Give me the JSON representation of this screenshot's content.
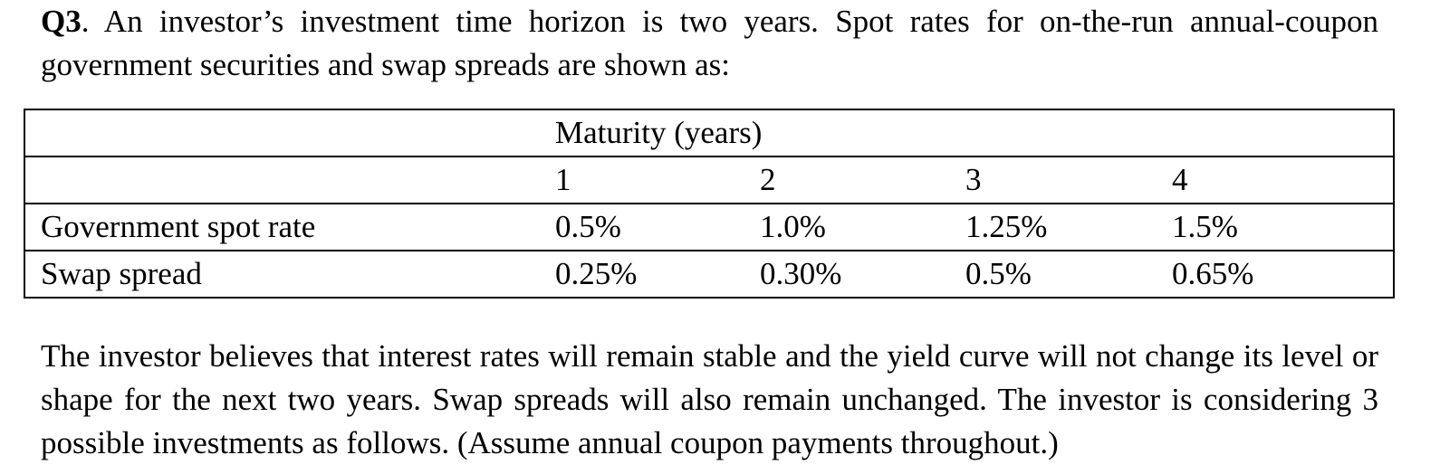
{
  "question": {
    "label": "Q3",
    "intro": ". An investor’s investment time horizon is two years. Spot rates for on-the-run annual-coupon government securities and swap spreads are shown as:"
  },
  "table": {
    "header_label": "Maturity (years)",
    "maturities": [
      "1",
      "2",
      "3",
      "4"
    ],
    "rows": [
      {
        "label": "Government spot rate",
        "values": [
          "0.5%",
          "1.0%",
          "1.25%",
          "1.5%"
        ]
      },
      {
        "label": "Swap spread",
        "values": [
          "0.25%",
          "0.30%",
          "0.5%",
          "0.65%"
        ]
      }
    ]
  },
  "closing": "The investor believes that interest rates will remain stable and the yield curve will not change its level or shape for the next two years. Swap spreads will also remain unchanged. The investor is considering 3 possible investments as follows. (Assume annual coupon payments throughout.)"
}
